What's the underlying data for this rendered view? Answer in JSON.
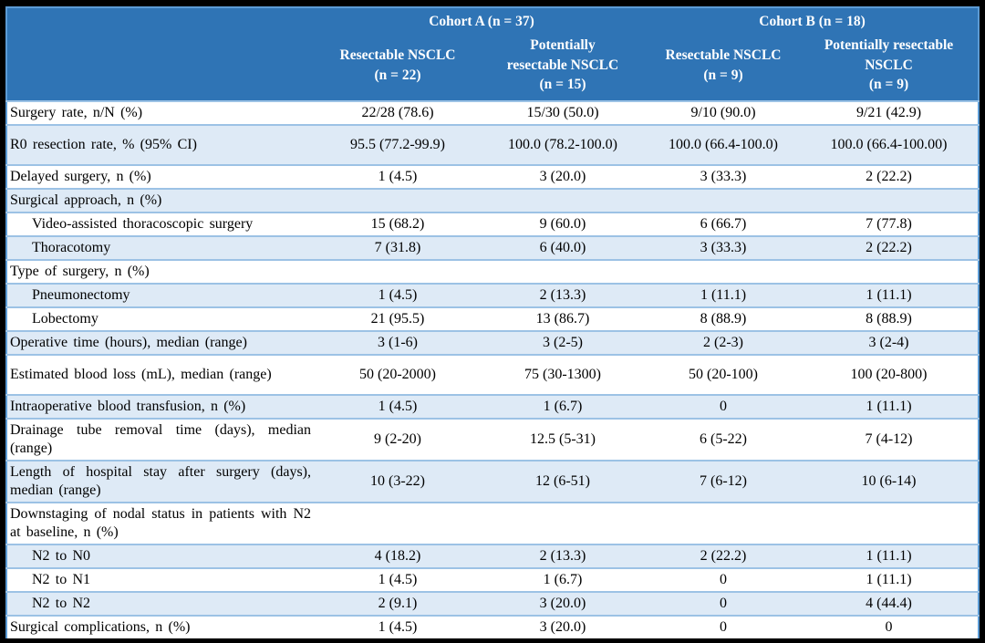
{
  "table": {
    "cohorts": [
      {
        "label": "Cohort A (n = 37)"
      },
      {
        "label": "Cohort B (n = 18)"
      }
    ],
    "columns": [
      "Resectable NSCLC\n(n = 22)",
      "Potentially\nresectable NSCLC\n(n = 15)",
      "Resectable NSCLC\n(n = 9)",
      "Potentially resectable\nNSCLC\n(n = 9)"
    ],
    "rows": [
      {
        "label": "Surgery rate, n/N (%)",
        "values": [
          "22/28 (78.6)",
          "15/30 (50.0)",
          "9/10 (90.0)",
          "9/21 (42.9)"
        ]
      },
      {
        "label": "R0 resection rate, % (95% CI)",
        "values": [
          "95.5 (77.2-99.9)",
          "100.0 (78.2-100.0)",
          "100.0 (66.4-100.0)",
          "100.0 (66.4-100.00)"
        ],
        "tall": true
      },
      {
        "label": "Delayed surgery, n (%)",
        "values": [
          "1 (4.5)",
          "3 (20.0)",
          "3 (33.3)",
          "2 (22.2)"
        ]
      },
      {
        "label": "Surgical approach, n (%)",
        "values": [
          "",
          "",
          "",
          ""
        ],
        "section": true
      },
      {
        "label": "Video-assisted thoracoscopic surgery",
        "values": [
          "15 (68.2)",
          "9 (60.0)",
          "6 (66.7)",
          "7 (77.8)"
        ],
        "indent": true
      },
      {
        "label": "Thoracotomy",
        "values": [
          "7 (31.8)",
          "6 (40.0)",
          "3 (33.3)",
          "2 (22.2)"
        ],
        "indent": true
      },
      {
        "label": "Type of surgery, n (%)",
        "values": [
          "",
          "",
          "",
          ""
        ],
        "section": true
      },
      {
        "label": "Pneumonectomy",
        "values": [
          "1 (4.5)",
          "2 (13.3)",
          "1 (11.1)",
          "1 (11.1)"
        ],
        "indent": true
      },
      {
        "label": "Lobectomy",
        "values": [
          "21 (95.5)",
          "13 (86.7)",
          "8 (88.9)",
          "8 (88.9)"
        ],
        "indent": true
      },
      {
        "label": "Operative time (hours), median (range)",
        "values": [
          "3 (1-6)",
          "3 (2-5)",
          "2 (2-3)",
          "3 (2-4)"
        ]
      },
      {
        "label": "Estimated blood loss (mL), median (range)",
        "values": [
          "50 (20-2000)",
          "75 (30-1300)",
          "50 (20-100)",
          "100 (20-800)"
        ],
        "tall": true
      },
      {
        "label": "Intraoperative blood transfusion, n (%)",
        "values": [
          "1 (4.5)",
          "1 (6.7)",
          "0",
          "1 (11.1)"
        ]
      },
      {
        "label": "Drainage tube removal time (days), median (range)",
        "values": [
          "9 (2-20)",
          "12.5 (5-31)",
          "6 (5-22)",
          "7 (4-12)"
        ]
      },
      {
        "label": "Length of hospital stay after surgery (days), median (range)",
        "values": [
          "10 (3-22)",
          "12 (6-51)",
          "7 (6-12)",
          "10 (6-14)"
        ]
      },
      {
        "label": "Downstaging of nodal status in patients with N2 at baseline, n (%)",
        "values": [
          "",
          "",
          "",
          ""
        ],
        "section": true
      },
      {
        "label": "N2 to N0",
        "values": [
          "4 (18.2)",
          "2 (13.3)",
          "2 (22.2)",
          "1 (11.1)"
        ],
        "indent": true
      },
      {
        "label": "N2 to N1",
        "values": [
          "1 (4.5)",
          "1 (6.7)",
          "0",
          "1 (11.1)"
        ],
        "indent": true
      },
      {
        "label": "N2 to N2",
        "values": [
          "2 (9.1)",
          "3 (20.0)",
          "0",
          "4 (44.4)"
        ],
        "indent": true
      },
      {
        "label": "Surgical complications, n (%)",
        "values": [
          "1 (4.5)",
          "3 (20.0)",
          "0",
          "0"
        ]
      }
    ],
    "colors": {
      "header_fill": "#2F74B5",
      "band_fill": "#DEEAF6",
      "border": "#9CC2E5",
      "outer_border": "#5B9BD5",
      "header_text": "#FFFFFF",
      "body_text": "#000000"
    }
  }
}
